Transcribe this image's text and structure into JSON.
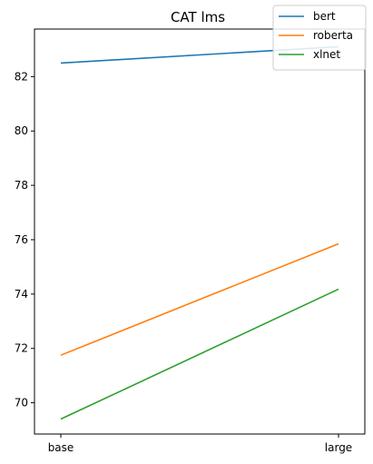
{
  "chart_data": {
    "type": "line",
    "title": "CAT lms",
    "xlabel": "",
    "ylabel": "",
    "categories": [
      "base",
      "large"
    ],
    "ylim": [
      68.85,
      83.75
    ],
    "yticks": [
      70,
      72,
      74,
      76,
      78,
      80,
      82
    ],
    "grid": false,
    "legend_position": "top-right",
    "series": [
      {
        "name": "bert",
        "color": "#1f77b4",
        "values": [
          82.5,
          83.1
        ]
      },
      {
        "name": "roberta",
        "color": "#ff7f0e",
        "values": [
          71.75,
          75.85
        ]
      },
      {
        "name": "xlnet",
        "color": "#2ca02c",
        "values": [
          69.4,
          74.18
        ]
      }
    ]
  }
}
